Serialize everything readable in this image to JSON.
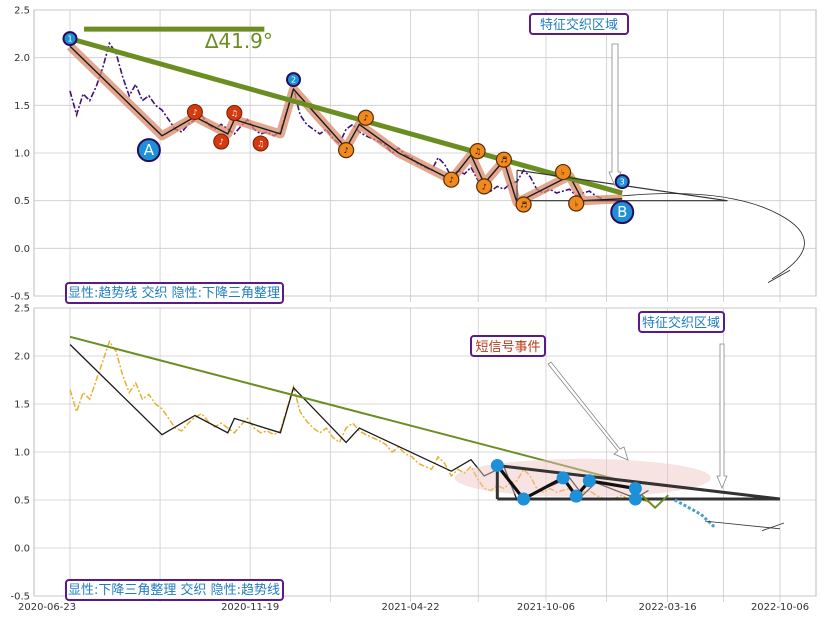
{
  "colors": {
    "panel_bg": "#ffffff",
    "grid": "#cccccc",
    "price_top": "#3f0f7a",
    "price_bottom": "#e8b030",
    "trend_green": "#6b8e23",
    "zigzag_band": "#d98a6a",
    "zigzag_line": "#1a1a1a",
    "label_blue": "#1e8fd0",
    "label_box_border": "#5a1a8a",
    "label_text_blue": "#1f7ec0",
    "label_text_red": "#b83a1a",
    "marker_red": "#d43a10",
    "marker_orange": "#f08a20",
    "triangle_dark": "#333333",
    "ellipse_pink": "#f0c0c0",
    "dot_blue": "#1e90d8"
  },
  "chart_data": [
    {
      "type": "line",
      "panel": "top",
      "ylim": [
        -0.5,
        2.5
      ],
      "yticks": [
        "-0.5",
        "0.0",
        "0.5",
        "1.0",
        "1.5",
        "2.0",
        "2.5"
      ],
      "series": [
        {
          "values": [
            [
              0,
              1.65
            ],
            [
              1,
              1.4
            ],
            [
              2,
              1.62
            ],
            [
              3,
              1.55
            ],
            [
              4,
              1.7
            ],
            [
              5,
              1.9
            ],
            [
              6,
              2.15
            ],
            [
              7,
              2.05
            ],
            [
              8,
              1.8
            ],
            [
              9,
              1.6
            ],
            [
              10,
              1.72
            ],
            [
              11,
              1.55
            ],
            [
              12,
              1.6
            ],
            [
              13,
              1.5
            ],
            [
              14,
              1.45
            ],
            [
              15,
              1.35
            ],
            [
              16,
              1.25
            ],
            [
              17,
              1.22
            ],
            [
              18,
              1.3
            ],
            [
              19,
              1.35
            ],
            [
              20,
              1.4
            ],
            [
              21,
              1.3
            ],
            [
              22,
              1.25
            ],
            [
              23,
              1.3
            ],
            [
              24,
              1.25
            ],
            [
              25,
              1.2
            ],
            [
              26,
              1.28
            ],
            [
              27,
              1.35
            ],
            [
              28,
              1.25
            ],
            [
              29,
              1.2
            ],
            [
              30,
              1.22
            ],
            [
              31,
              1.18
            ],
            [
              32,
              1.22
            ],
            [
              33,
              1.45
            ],
            [
              34,
              1.68
            ],
            [
              35,
              1.4
            ],
            [
              36,
              1.3
            ],
            [
              37,
              1.25
            ],
            [
              38,
              1.2
            ],
            [
              39,
              1.25
            ],
            [
              40,
              1.15
            ],
            [
              41,
              1.1
            ],
            [
              42,
              1.25
            ],
            [
              43,
              1.3
            ],
            [
              44,
              1.22
            ],
            [
              45,
              1.18
            ],
            [
              46,
              1.15
            ],
            [
              47,
              1.12
            ],
            [
              48,
              1.08
            ],
            [
              49,
              1.0
            ],
            [
              50,
              1.05
            ],
            [
              51,
              0.98
            ],
            [
              52,
              0.95
            ],
            [
              53,
              0.88
            ],
            [
              54,
              0.85
            ],
            [
              55,
              0.82
            ],
            [
              56,
              0.95
            ],
            [
              57,
              0.88
            ],
            [
              58,
              0.75
            ],
            [
              59,
              0.82
            ],
            [
              60,
              0.78
            ],
            [
              61,
              0.85
            ],
            [
              62,
              0.72
            ],
            [
              63,
              0.62
            ],
            [
              64,
              0.6
            ],
            [
              65,
              0.65
            ],
            [
              66,
              0.62
            ],
            [
              67,
              0.68
            ],
            [
              68,
              0.7
            ],
            [
              69,
              0.82
            ],
            [
              70,
              0.75
            ],
            [
              71,
              0.62
            ],
            [
              72,
              0.58
            ],
            [
              73,
              0.62
            ],
            [
              74,
              0.58
            ],
            [
              75,
              0.6
            ],
            [
              76,
              0.62
            ],
            [
              77,
              0.55
            ],
            [
              78,
              0.58
            ],
            [
              79,
              0.6
            ],
            [
              80,
              0.55
            ],
            [
              81,
              0.52
            ]
          ]
        }
      ],
      "zigzag": [
        [
          0,
          2.12
        ],
        [
          14,
          1.18
        ],
        [
          19,
          1.38
        ],
        [
          24,
          1.2
        ],
        [
          25,
          1.35
        ],
        [
          32,
          1.2
        ],
        [
          34,
          1.67
        ],
        [
          42,
          1.05
        ],
        [
          44,
          1.3
        ],
        [
          50,
          1.0
        ],
        [
          58,
          0.72
        ],
        [
          61,
          0.98
        ],
        [
          63,
          0.68
        ],
        [
          66,
          0.92
        ],
        [
          68,
          0.48
        ],
        [
          76,
          0.76
        ],
        [
          78,
          0.5
        ],
        [
          84,
          0.52
        ]
      ],
      "trendline": [
        [
          0,
          2.2
        ],
        [
          84,
          0.58
        ]
      ],
      "flag": [
        [
          0,
          2.3
        ],
        [
          25,
          2.3
        ]
      ],
      "angle_label": "∆41.9°",
      "numbered_points": [
        {
          "label": "1",
          "x": 0,
          "y": 2.2
        },
        {
          "label": "2",
          "x": 34,
          "y": 1.77
        },
        {
          "label": "3",
          "x": 84,
          "y": 0.7
        }
      ],
      "letter_points": [
        {
          "label": "A",
          "x": 12,
          "y": 1.03
        },
        {
          "label": "B",
          "x": 84,
          "y": 0.38
        }
      ],
      "red_markers": [
        {
          "symbol": "♪",
          "x": 19,
          "y": 1.43
        },
        {
          "symbol": "♪",
          "x": 23,
          "y": 1.12
        },
        {
          "symbol": "♫",
          "x": 25,
          "y": 1.42
        },
        {
          "symbol": "♫",
          "x": 29,
          "y": 1.1
        }
      ],
      "orange_markers": [
        {
          "symbol": "♪",
          "x": 42,
          "y": 1.03
        },
        {
          "symbol": "♪",
          "x": 45,
          "y": 1.37
        },
        {
          "symbol": "♪",
          "x": 58,
          "y": 0.72
        },
        {
          "symbol": "♫",
          "x": 62,
          "y": 1.02
        },
        {
          "symbol": "♪",
          "x": 63,
          "y": 0.65
        },
        {
          "symbol": "♬",
          "x": 66,
          "y": 0.93
        },
        {
          "symbol": "♬",
          "x": 69,
          "y": 0.46
        },
        {
          "symbol": "♭",
          "x": 75,
          "y": 0.8
        },
        {
          "symbol": "♭",
          "x": 77,
          "y": 0.47
        }
      ],
      "annotation_box": "特征交织区域",
      "bottom_label": "显性:趋势线 交织 隐性:下降三角整理"
    },
    {
      "type": "line",
      "panel": "bottom",
      "ylim": [
        -0.5,
        2.5
      ],
      "yticks": [
        "-0.5",
        "0.0",
        "0.5",
        "1.0",
        "1.5",
        "2.0",
        "2.5"
      ],
      "xticks": [
        "2020-06-23",
        "2020-11-19",
        "2021-04-22",
        "2021-10-06",
        "2022-03-16",
        "2022-10-06"
      ],
      "series": [
        {
          "values": [
            [
              0,
              1.65
            ],
            [
              1,
              1.42
            ],
            [
              2,
              1.62
            ],
            [
              3,
              1.55
            ],
            [
              4,
              1.75
            ],
            [
              5,
              1.95
            ],
            [
              6,
              2.15
            ],
            [
              7,
              2.05
            ],
            [
              8,
              1.8
            ],
            [
              9,
              1.62
            ],
            [
              10,
              1.72
            ],
            [
              11,
              1.55
            ],
            [
              12,
              1.6
            ],
            [
              13,
              1.5
            ],
            [
              14,
              1.45
            ],
            [
              15,
              1.35
            ],
            [
              16,
              1.25
            ],
            [
              17,
              1.22
            ],
            [
              18,
              1.3
            ],
            [
              19,
              1.36
            ],
            [
              20,
              1.4
            ],
            [
              21,
              1.32
            ],
            [
              22,
              1.26
            ],
            [
              23,
              1.3
            ],
            [
              24,
              1.25
            ],
            [
              25,
              1.2
            ],
            [
              26,
              1.28
            ],
            [
              27,
              1.35
            ],
            [
              28,
              1.25
            ],
            [
              29,
              1.2
            ],
            [
              30,
              1.22
            ],
            [
              31,
              1.18
            ],
            [
              32,
              1.22
            ],
            [
              33,
              1.45
            ],
            [
              34,
              1.68
            ],
            [
              35,
              1.42
            ],
            [
              36,
              1.32
            ],
            [
              37,
              1.25
            ],
            [
              38,
              1.2
            ],
            [
              39,
              1.25
            ],
            [
              40,
              1.15
            ],
            [
              41,
              1.1
            ],
            [
              42,
              1.25
            ],
            [
              43,
              1.3
            ],
            [
              44,
              1.22
            ],
            [
              45,
              1.18
            ],
            [
              46,
              1.15
            ],
            [
              47,
              1.12
            ],
            [
              48,
              1.08
            ],
            [
              49,
              1.0
            ],
            [
              50,
              1.05
            ],
            [
              51,
              0.98
            ],
            [
              52,
              0.95
            ],
            [
              53,
              0.88
            ],
            [
              54,
              0.85
            ],
            [
              55,
              0.82
            ],
            [
              56,
              0.95
            ],
            [
              57,
              0.88
            ],
            [
              58,
              0.75
            ],
            [
              59,
              0.82
            ],
            [
              60,
              0.78
            ],
            [
              61,
              0.85
            ],
            [
              62,
              0.72
            ],
            [
              63,
              0.62
            ],
            [
              64,
              0.6
            ],
            [
              65,
              0.65
            ],
            [
              66,
              0.62
            ],
            [
              67,
              0.68
            ],
            [
              68,
              0.7
            ],
            [
              69,
              0.82
            ],
            [
              70,
              0.75
            ],
            [
              71,
              0.62
            ],
            [
              72,
              0.58
            ],
            [
              73,
              0.62
            ],
            [
              74,
              0.58
            ],
            [
              75,
              0.6
            ],
            [
              76,
              0.62
            ],
            [
              77,
              0.55
            ],
            [
              78,
              0.58
            ],
            [
              79,
              0.6
            ],
            [
              80,
              0.55
            ],
            [
              81,
              0.52
            ],
            [
              82,
              0.5
            ],
            [
              83,
              0.52
            ],
            [
              84,
              0.55
            ],
            [
              85,
              0.5
            ],
            [
              86,
              0.45
            ],
            [
              87,
              0.5
            ],
            [
              88,
              0.48
            ],
            [
              89,
              0.42
            ]
          ]
        }
      ],
      "zigzag": [
        [
          0,
          2.12
        ],
        [
          14,
          1.18
        ],
        [
          19,
          1.38
        ],
        [
          24,
          1.2
        ],
        [
          25,
          1.35
        ],
        [
          32,
          1.2
        ],
        [
          34,
          1.67
        ],
        [
          42,
          1.1
        ],
        [
          44,
          1.25
        ],
        [
          58,
          0.8
        ],
        [
          61,
          0.92
        ],
        [
          63,
          0.75
        ],
        [
          66,
          0.85
        ],
        [
          68,
          0.5
        ],
        [
          76,
          0.73
        ],
        [
          78,
          0.55
        ],
        [
          80,
          0.68
        ],
        [
          86,
          0.52
        ],
        [
          88,
          0.6
        ]
      ],
      "trendline": [
        [
          0,
          2.2
        ],
        [
          84,
          0.7
        ]
      ],
      "triangle_top": [
        [
          65,
          0.86
        ],
        [
          108,
          0.51
        ]
      ],
      "triangle_base": [
        [
          65,
          0.51
        ],
        [
          108,
          0.51
        ]
      ],
      "blue_dots": [
        {
          "x": 65,
          "y": 0.86
        },
        {
          "x": 69,
          "y": 0.51
        },
        {
          "x": 75,
          "y": 0.73
        },
        {
          "x": 77,
          "y": 0.54
        },
        {
          "x": 79,
          "y": 0.7
        },
        {
          "x": 86,
          "y": 0.62
        },
        {
          "x": 86,
          "y": 0.51
        }
      ],
      "projection_small": [
        [
          87,
          0.55
        ],
        [
          89,
          0.42
        ],
        [
          91,
          0.55
        ]
      ],
      "projection_dashed": [
        [
          92,
          0.5
        ],
        [
          96,
          0.35
        ],
        [
          98,
          0.22
        ]
      ],
      "annotation_signal": "短信号事件",
      "annotation_box": "特征交织区域",
      "bottom_label": "显性:下降三角整理 交织 隐性:趋势线"
    }
  ]
}
